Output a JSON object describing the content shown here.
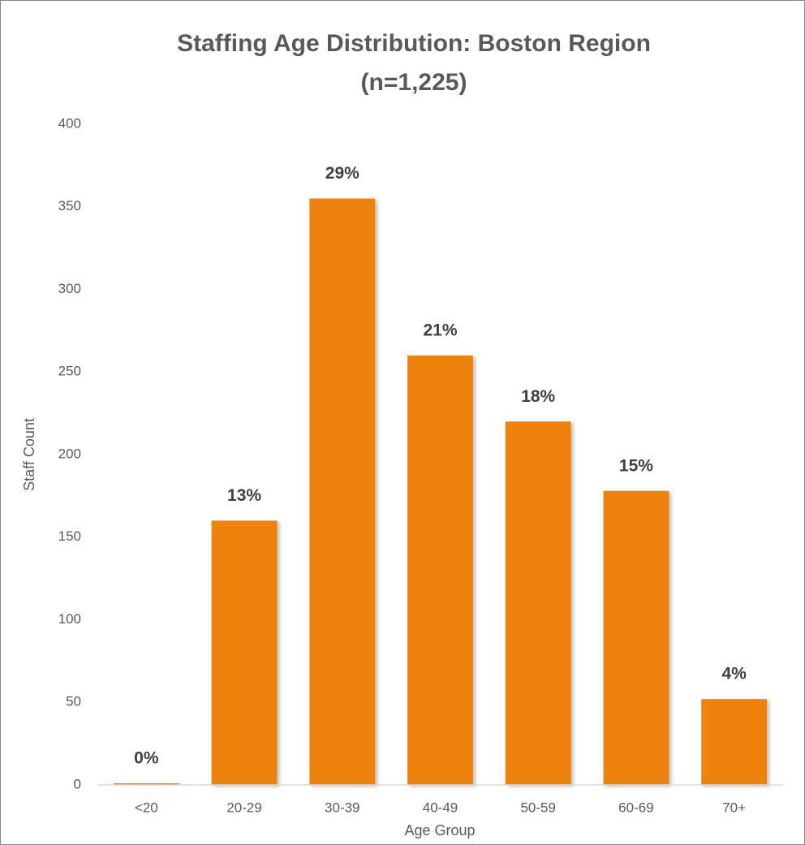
{
  "chart_data": {
    "type": "bar",
    "title": "Staffing Age Distribution: Boston Region",
    "subtitle": "(n=1,225)",
    "x_label": "Age Group",
    "y_label": "Staff Count",
    "categories": [
      "<20",
      "20-29",
      "30-39",
      "40-49",
      "50-59",
      "60-69",
      "70+"
    ],
    "values": [
      1,
      160,
      355,
      260,
      220,
      178,
      52
    ],
    "value_labels": [
      "0%",
      "13%",
      "29%",
      "21%",
      "18%",
      "15%",
      "4%"
    ],
    "color": "#ef820c",
    "ylim": [
      0,
      400
    ],
    "yticks": [
      0,
      50,
      100,
      150,
      200,
      250,
      300,
      350,
      400
    ],
    "grid": false
  }
}
